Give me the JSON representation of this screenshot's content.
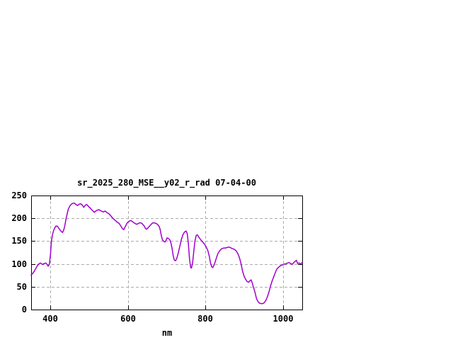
{
  "page": {
    "background": "#ffffff"
  },
  "chart_data": {
    "type": "line",
    "title": "sr_2025_280_MSE__y02_r_rad 07-04-00",
    "xlabel": "nm",
    "ylabel": "",
    "xlim": [
      350,
      1050
    ],
    "ylim": [
      0,
      250
    ],
    "xticks": [
      400,
      600,
      800,
      1000
    ],
    "yticks": [
      0,
      50,
      100,
      150,
      200,
      250
    ],
    "grid": true,
    "legend_position": "none",
    "colors": {
      "line": "#a000cc",
      "grid": "#ababab",
      "axis": "#000000",
      "text": "#000000"
    },
    "series": [
      {
        "name": "sr_2025_280_MSE__y02_r_rad",
        "points": [
          [
            350,
            76
          ],
          [
            354,
            79
          ],
          [
            358,
            84
          ],
          [
            362,
            90
          ],
          [
            366,
            96
          ],
          [
            370,
            100
          ],
          [
            374,
            102
          ],
          [
            377,
            100
          ],
          [
            380,
            99
          ],
          [
            384,
            101
          ],
          [
            388,
            102
          ],
          [
            391,
            99
          ],
          [
            394,
            95
          ],
          [
            397,
            99
          ],
          [
            400,
            122
          ],
          [
            402,
            148
          ],
          [
            405,
            164
          ],
          [
            408,
            173
          ],
          [
            411,
            179
          ],
          [
            414,
            183
          ],
          [
            417,
            183
          ],
          [
            420,
            180
          ],
          [
            424,
            175
          ],
          [
            428,
            171
          ],
          [
            431,
            169
          ],
          [
            434,
            174
          ],
          [
            437,
            184
          ],
          [
            440,
            198
          ],
          [
            443,
            210
          ],
          [
            446,
            220
          ],
          [
            450,
            227
          ],
          [
            454,
            231
          ],
          [
            458,
            233
          ],
          [
            462,
            233
          ],
          [
            466,
            230
          ],
          [
            470,
            228
          ],
          [
            474,
            231
          ],
          [
            478,
            232
          ],
          [
            482,
            229
          ],
          [
            486,
            224
          ],
          [
            490,
            229
          ],
          [
            494,
            230
          ],
          [
            498,
            226
          ],
          [
            502,
            223
          ],
          [
            506,
            219
          ],
          [
            510,
            216
          ],
          [
            513,
            213
          ],
          [
            517,
            216
          ],
          [
            521,
            218
          ],
          [
            525,
            219
          ],
          [
            529,
            217
          ],
          [
            533,
            215
          ],
          [
            537,
            214
          ],
          [
            541,
            216
          ],
          [
            545,
            213
          ],
          [
            549,
            211
          ],
          [
            553,
            208
          ],
          [
            557,
            204
          ],
          [
            561,
            200
          ],
          [
            565,
            197
          ],
          [
            569,
            194
          ],
          [
            573,
            191
          ],
          [
            577,
            189
          ],
          [
            581,
            184
          ],
          [
            585,
            178
          ],
          [
            589,
            175
          ],
          [
            592,
            180
          ],
          [
            595,
            185
          ],
          [
            598,
            190
          ],
          [
            602,
            193
          ],
          [
            606,
            195
          ],
          [
            610,
            194
          ],
          [
            614,
            191
          ],
          [
            618,
            189
          ],
          [
            622,
            187
          ],
          [
            626,
            188
          ],
          [
            630,
            190
          ],
          [
            634,
            190
          ],
          [
            638,
            187
          ],
          [
            642,
            183
          ],
          [
            645,
            178
          ],
          [
            648,
            176
          ],
          [
            652,
            179
          ],
          [
            656,
            183
          ],
          [
            660,
            187
          ],
          [
            664,
            190
          ],
          [
            668,
            190
          ],
          [
            672,
            189
          ],
          [
            676,
            187
          ],
          [
            680,
            183
          ],
          [
            683,
            176
          ],
          [
            686,
            163
          ],
          [
            689,
            153
          ],
          [
            692,
            150
          ],
          [
            695,
            148
          ],
          [
            698,
            151
          ],
          [
            701,
            157
          ],
          [
            704,
            156
          ],
          [
            708,
            153
          ],
          [
            711,
            146
          ],
          [
            714,
            133
          ],
          [
            717,
            117
          ],
          [
            720,
            108
          ],
          [
            723,
            107
          ],
          [
            726,
            112
          ],
          [
            730,
            124
          ],
          [
            734,
            139
          ],
          [
            738,
            154
          ],
          [
            742,
            164
          ],
          [
            746,
            170
          ],
          [
            750,
            172
          ],
          [
            753,
            167
          ],
          [
            756,
            145
          ],
          [
            759,
            110
          ],
          [
            762,
            92
          ],
          [
            764,
            91
          ],
          [
            767,
            103
          ],
          [
            770,
            128
          ],
          [
            773,
            150
          ],
          [
            776,
            162
          ],
          [
            779,
            164
          ],
          [
            782,
            160
          ],
          [
            786,
            155
          ],
          [
            790,
            151
          ],
          [
            794,
            147
          ],
          [
            798,
            143
          ],
          [
            802,
            137
          ],
          [
            806,
            130
          ],
          [
            810,
            117
          ],
          [
            813,
            103
          ],
          [
            816,
            94
          ],
          [
            819,
            92
          ],
          [
            822,
            97
          ],
          [
            825,
            104
          ],
          [
            828,
            112
          ],
          [
            832,
            122
          ],
          [
            836,
            128
          ],
          [
            840,
            132
          ],
          [
            844,
            134
          ],
          [
            848,
            135
          ],
          [
            852,
            135
          ],
          [
            856,
            136
          ],
          [
            860,
            137
          ],
          [
            864,
            136
          ],
          [
            868,
            134
          ],
          [
            872,
            133
          ],
          [
            876,
            131
          ],
          [
            880,
            128
          ],
          [
            884,
            122
          ],
          [
            888,
            113
          ],
          [
            892,
            100
          ],
          [
            896,
            84
          ],
          [
            900,
            73
          ],
          [
            904,
            66
          ],
          [
            908,
            61
          ],
          [
            912,
            60
          ],
          [
            915,
            63
          ],
          [
            918,
            65
          ],
          [
            921,
            58
          ],
          [
            924,
            49
          ],
          [
            928,
            38
          ],
          [
            932,
            24
          ],
          [
            936,
            17
          ],
          [
            940,
            14
          ],
          [
            944,
            13
          ],
          [
            948,
            13
          ],
          [
            952,
            15
          ],
          [
            956,
            20
          ],
          [
            960,
            28
          ],
          [
            964,
            38
          ],
          [
            968,
            51
          ],
          [
            972,
            62
          ],
          [
            976,
            71
          ],
          [
            980,
            80
          ],
          [
            984,
            88
          ],
          [
            988,
            92
          ],
          [
            992,
            95
          ],
          [
            996,
            97
          ],
          [
            1000,
            98
          ],
          [
            1004,
            100
          ],
          [
            1008,
            100
          ],
          [
            1012,
            102
          ],
          [
            1016,
            103
          ],
          [
            1020,
            101
          ],
          [
            1024,
            99
          ],
          [
            1028,
            103
          ],
          [
            1032,
            106
          ],
          [
            1035,
            108
          ],
          [
            1038,
            101
          ],
          [
            1042,
            102
          ],
          [
            1046,
            100
          ],
          [
            1050,
            103
          ]
        ]
      }
    ]
  }
}
